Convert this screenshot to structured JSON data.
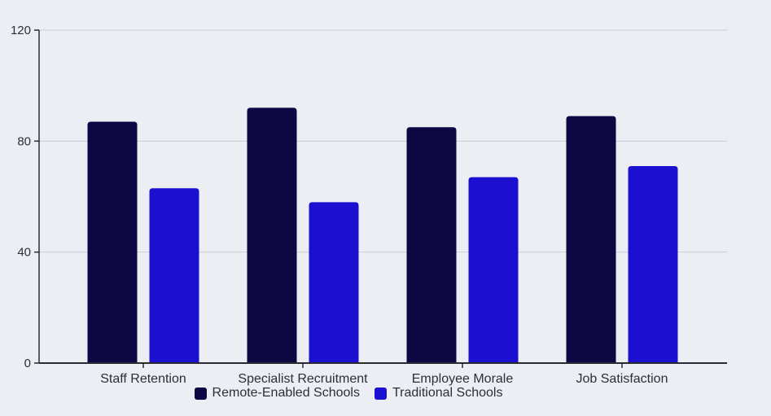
{
  "chart_data": {
    "type": "bar",
    "categories": [
      "Staff Retention",
      "Specialist Recruitment",
      "Employee Morale",
      "Job Satisfaction"
    ],
    "series": [
      {
        "name": "Remote-Enabled Schools",
        "values": [
          87,
          92,
          85,
          89
        ],
        "color": "#0d0743"
      },
      {
        "name": "Traditional Schools",
        "values": [
          63,
          58,
          67,
          71
        ],
        "color": "#1b10d0"
      }
    ],
    "ylim": [
      0,
      120
    ],
    "yticks": [
      "0",
      "40",
      "80",
      "120"
    ],
    "grid": true,
    "legend_position": "bottom"
  }
}
